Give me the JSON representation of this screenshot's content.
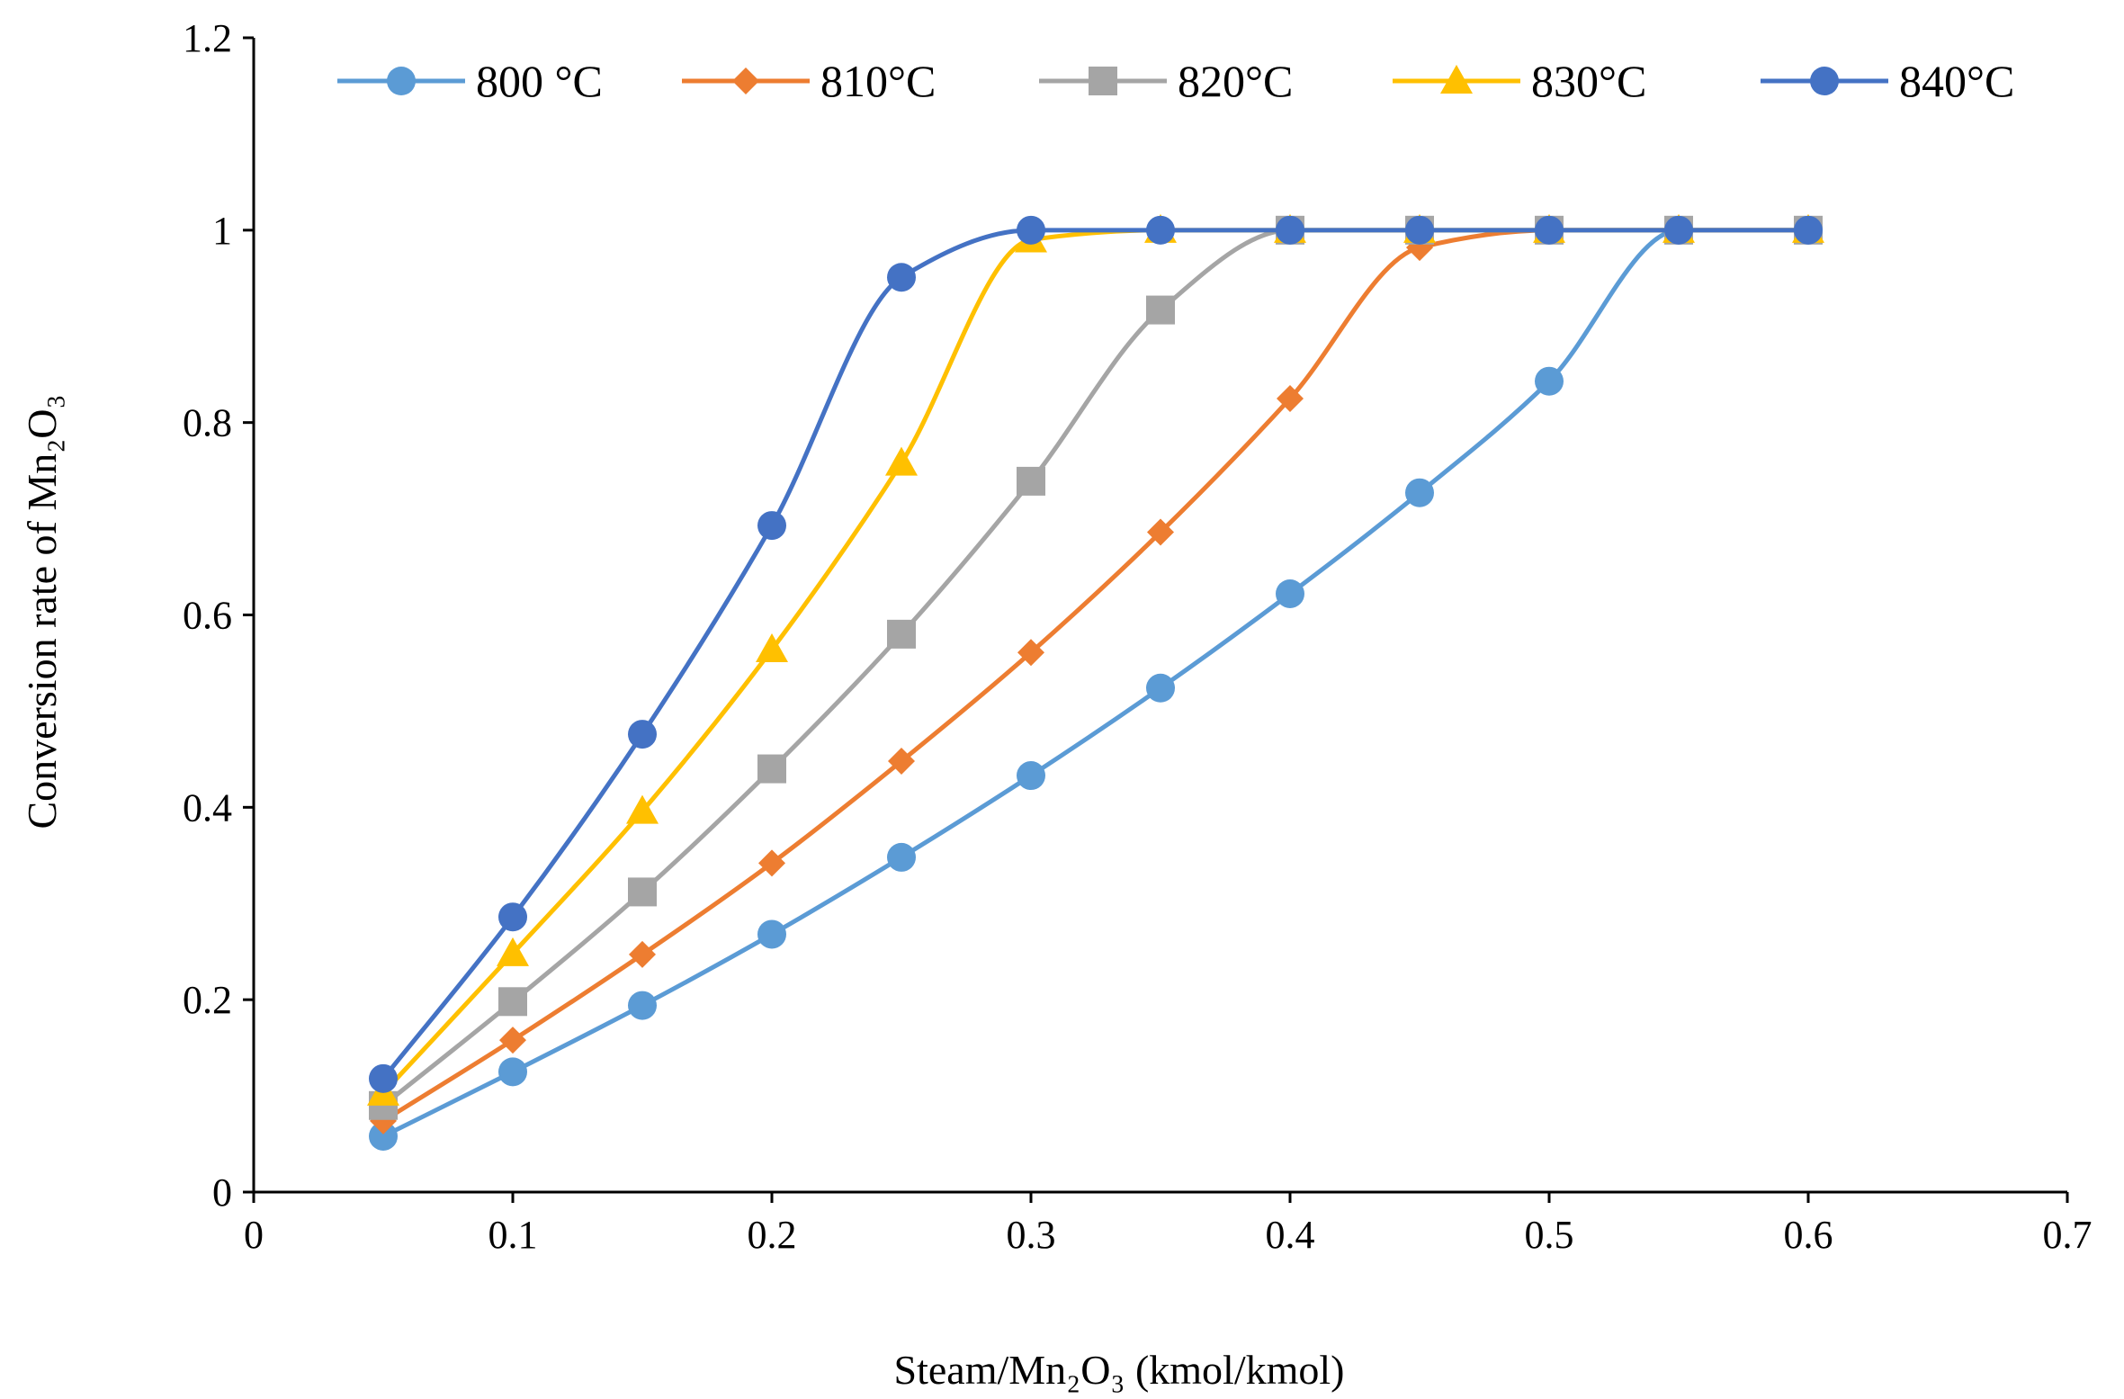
{
  "chart_data": {
    "type": "line",
    "title": "",
    "xlabel": "Steam/Mn₂O₃  (kmol/kmol)",
    "ylabel": "Conversion rate of Mn₂O₃",
    "xlim": [
      0,
      0.7
    ],
    "ylim": [
      0,
      1.2
    ],
    "xticks": [
      0,
      0.1,
      0.2,
      0.3,
      0.4,
      0.5,
      0.6,
      0.7
    ],
    "xtick_labels": [
      "0",
      "0.1",
      "0.2",
      "0.3",
      "0.4",
      "0.5",
      "0.6",
      "0.7"
    ],
    "yticks": [
      0,
      0.2,
      0.4,
      0.6,
      0.8,
      1,
      1.2
    ],
    "ytick_labels": [
      "0",
      "0.2",
      "0.4",
      "0.6",
      "0.8",
      "1",
      "1.2"
    ],
    "grid": false,
    "legend_position": "top",
    "smooth": true,
    "x": [
      0.05,
      0.1,
      0.15,
      0.2,
      0.25,
      0.3,
      0.35,
      0.4,
      0.45,
      0.5,
      0.55,
      0.6
    ],
    "series": [
      {
        "name": "800 °C",
        "marker": "circle",
        "color": "#5B9BD5",
        "values": [
          0.058,
          0.125,
          0.194,
          0.268,
          0.348,
          0.433,
          0.524,
          0.622,
          0.727,
          0.843,
          1.0,
          1.0
        ]
      },
      {
        "name": "810°C",
        "marker": "diamond",
        "color": "#ED7D31",
        "values": [
          0.074,
          0.158,
          0.247,
          0.342,
          0.448,
          0.561,
          0.686,
          0.825,
          0.982,
          1.0,
          1.0,
          1.0
        ]
      },
      {
        "name": "820°C",
        "marker": "square",
        "color": "#A5A5A5",
        "values": [
          0.09,
          0.198,
          0.312,
          0.44,
          0.58,
          0.739,
          0.917,
          1.0,
          1.0,
          1.0,
          1.0,
          1.0
        ]
      },
      {
        "name": "830°C",
        "marker": "triangle",
        "color": "#FFC000",
        "values": [
          0.103,
          0.248,
          0.396,
          0.564,
          0.758,
          0.99,
          1.0,
          1.0,
          1.0,
          1.0,
          1.0,
          1.0
        ]
      },
      {
        "name": "840°C",
        "marker": "circle",
        "color": "#4472C4",
        "values": [
          0.118,
          0.286,
          0.476,
          0.693,
          0.951,
          1.0,
          1.0,
          1.0,
          1.0,
          1.0,
          1.0,
          1.0
        ]
      }
    ]
  }
}
